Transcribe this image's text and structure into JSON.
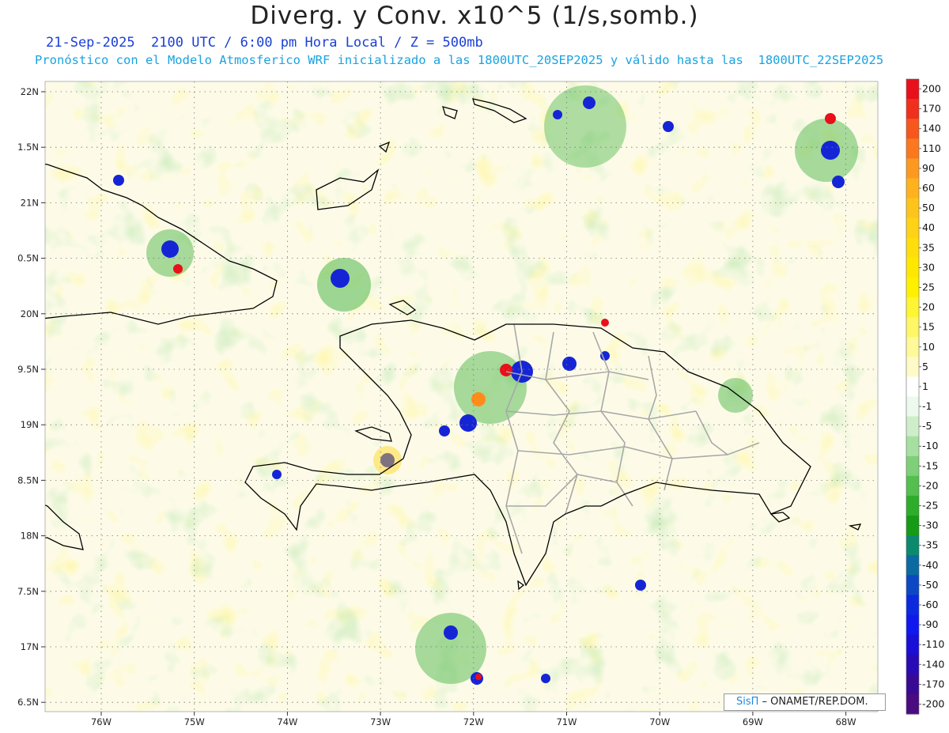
{
  "header": {
    "title": "Diverg. y Conv. x10^5 (1/s,somb.)",
    "subtitle_line1": "21-Sep-2025  2100 UTC / 6:00 pm Hora Local / Z = 500mb",
    "subtitle_line2": "Pronóstico con el Modelo Atmosferico WRF inicializado a las 1800UTC_20SEP2025 y válido hasta las  1800UTC_22SEP2025"
  },
  "map": {
    "lon_ticks": [
      "76W",
      "75W",
      "74W",
      "73W",
      "72W",
      "71W",
      "70W",
      "69W",
      "68W"
    ],
    "lat_ticks": [
      "22N",
      "1.5N",
      "21N",
      "0.5N",
      "20N",
      "9.5N",
      "19N",
      "8.5N",
      "18N",
      "7.5N",
      "17N",
      "6.5N"
    ],
    "colors": {
      "background": "#fdfbe8",
      "coastline": "#000000",
      "provinces": "#a8a8a8",
      "grid": "#777777"
    }
  },
  "colorbar": {
    "labels": [
      "200",
      "170",
      "140",
      "110",
      "90",
      "60",
      "50",
      "40",
      "35",
      "30",
      "25",
      "20",
      "15",
      "10",
      "5",
      "1",
      "-1",
      "-5",
      "-10",
      "-15",
      "-20",
      "-25",
      "-30",
      "-35",
      "-40",
      "-50",
      "-60",
      "-90",
      "-110",
      "-140",
      "-170",
      "-200"
    ],
    "colors": [
      "#e8101a",
      "#f0301c",
      "#f7561c",
      "#fb781f",
      "#fd9921",
      "#ffb21e",
      "#ffc41c",
      "#ffd215",
      "#ffde0c",
      "#ffe800",
      "#fff000",
      "#fff533",
      "#fff766",
      "#fff999",
      "#fffbc8",
      "#ffffff",
      "#eef9ee",
      "#cdeec9",
      "#a6e0a0",
      "#7dd077",
      "#52bf4e",
      "#2ead2a",
      "#159b15",
      "#0c8a6e",
      "#0b6aa0",
      "#0c48c4",
      "#0b2ae0",
      "#0f19ee",
      "#1a0fd6",
      "#2a0ab4",
      "#380a94",
      "#4a0a80"
    ]
  },
  "credit": {
    "brand": "SisΠ",
    "text": " – ONAMET/REP.DOM."
  }
}
